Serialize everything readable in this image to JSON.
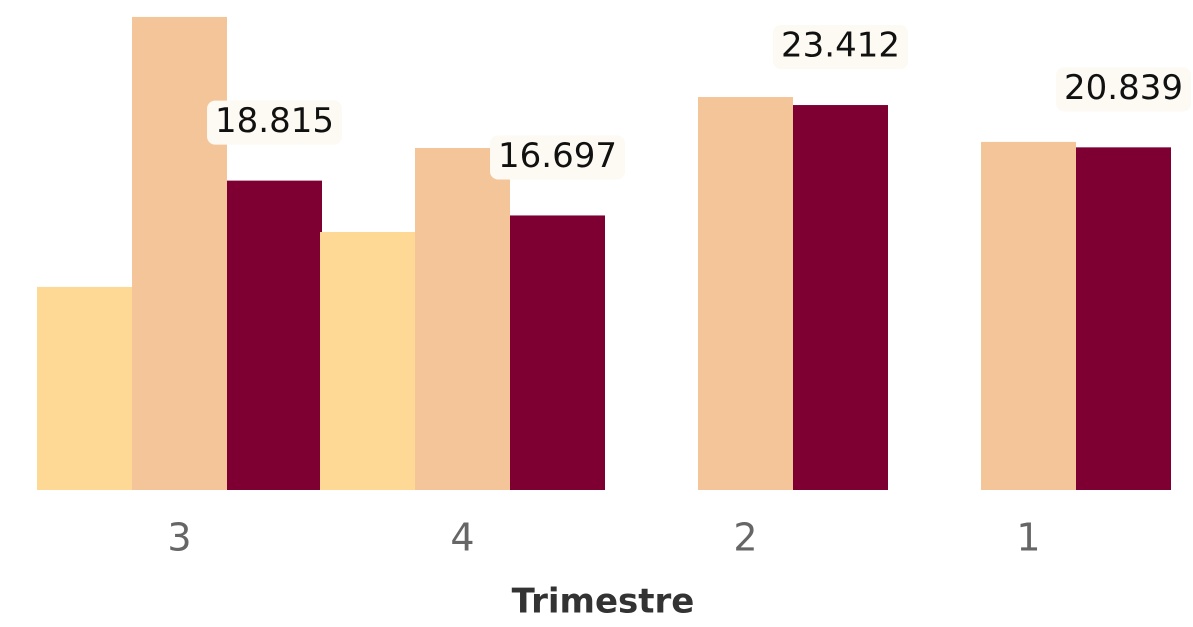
{
  "chart_data": {
    "type": "bar",
    "x_label": "Trimestre",
    "categories": [
      "3",
      "4",
      "2",
      "1"
    ],
    "series": [
      {
        "color": "#fdd995",
        "values": [
          12350,
          15690,
          null,
          null
        ]
      },
      {
        "color": "#f4c598",
        "values": [
          28770,
          20800,
          23900,
          21170
        ]
      },
      {
        "color": "#7e0033",
        "values": [
          18815,
          16697,
          23412,
          20839
        ],
        "value_labels": [
          "18.815",
          "16.697",
          "23.412",
          "20.839"
        ]
      }
    ],
    "ylim": [
      0,
      29800
    ]
  }
}
